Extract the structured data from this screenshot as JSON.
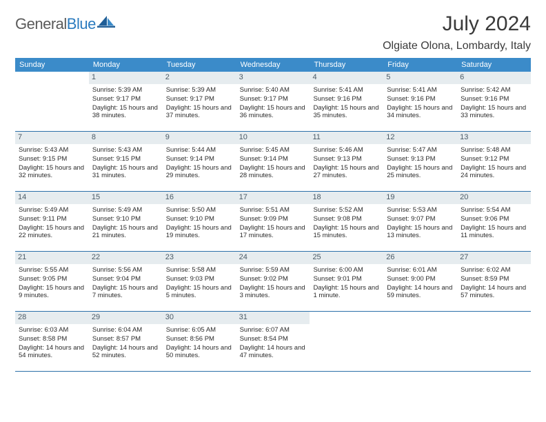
{
  "brand": {
    "name_part1": "General",
    "name_part2": "Blue"
  },
  "title": "July 2024",
  "location": "Olgiate Olona, Lombardy, Italy",
  "colors": {
    "header_bg": "#3b8bc9",
    "daynum_bg": "#e6ecef",
    "border": "#2b6fa8",
    "logo_blue": "#2b7bbf"
  },
  "dow": [
    "Sunday",
    "Monday",
    "Tuesday",
    "Wednesday",
    "Thursday",
    "Friday",
    "Saturday"
  ],
  "weeks": [
    [
      null,
      {
        "n": "1",
        "sr": "5:39 AM",
        "ss": "9:17 PM",
        "dl": "15 hours and 38 minutes."
      },
      {
        "n": "2",
        "sr": "5:39 AM",
        "ss": "9:17 PM",
        "dl": "15 hours and 37 minutes."
      },
      {
        "n": "3",
        "sr": "5:40 AM",
        "ss": "9:17 PM",
        "dl": "15 hours and 36 minutes."
      },
      {
        "n": "4",
        "sr": "5:41 AM",
        "ss": "9:16 PM",
        "dl": "15 hours and 35 minutes."
      },
      {
        "n": "5",
        "sr": "5:41 AM",
        "ss": "9:16 PM",
        "dl": "15 hours and 34 minutes."
      },
      {
        "n": "6",
        "sr": "5:42 AM",
        "ss": "9:16 PM",
        "dl": "15 hours and 33 minutes."
      }
    ],
    [
      {
        "n": "7",
        "sr": "5:43 AM",
        "ss": "9:15 PM",
        "dl": "15 hours and 32 minutes."
      },
      {
        "n": "8",
        "sr": "5:43 AM",
        "ss": "9:15 PM",
        "dl": "15 hours and 31 minutes."
      },
      {
        "n": "9",
        "sr": "5:44 AM",
        "ss": "9:14 PM",
        "dl": "15 hours and 29 minutes."
      },
      {
        "n": "10",
        "sr": "5:45 AM",
        "ss": "9:14 PM",
        "dl": "15 hours and 28 minutes."
      },
      {
        "n": "11",
        "sr": "5:46 AM",
        "ss": "9:13 PM",
        "dl": "15 hours and 27 minutes."
      },
      {
        "n": "12",
        "sr": "5:47 AM",
        "ss": "9:13 PM",
        "dl": "15 hours and 25 minutes."
      },
      {
        "n": "13",
        "sr": "5:48 AM",
        "ss": "9:12 PM",
        "dl": "15 hours and 24 minutes."
      }
    ],
    [
      {
        "n": "14",
        "sr": "5:49 AM",
        "ss": "9:11 PM",
        "dl": "15 hours and 22 minutes."
      },
      {
        "n": "15",
        "sr": "5:49 AM",
        "ss": "9:10 PM",
        "dl": "15 hours and 21 minutes."
      },
      {
        "n": "16",
        "sr": "5:50 AM",
        "ss": "9:10 PM",
        "dl": "15 hours and 19 minutes."
      },
      {
        "n": "17",
        "sr": "5:51 AM",
        "ss": "9:09 PM",
        "dl": "15 hours and 17 minutes."
      },
      {
        "n": "18",
        "sr": "5:52 AM",
        "ss": "9:08 PM",
        "dl": "15 hours and 15 minutes."
      },
      {
        "n": "19",
        "sr": "5:53 AM",
        "ss": "9:07 PM",
        "dl": "15 hours and 13 minutes."
      },
      {
        "n": "20",
        "sr": "5:54 AM",
        "ss": "9:06 PM",
        "dl": "15 hours and 11 minutes."
      }
    ],
    [
      {
        "n": "21",
        "sr": "5:55 AM",
        "ss": "9:05 PM",
        "dl": "15 hours and 9 minutes."
      },
      {
        "n": "22",
        "sr": "5:56 AM",
        "ss": "9:04 PM",
        "dl": "15 hours and 7 minutes."
      },
      {
        "n": "23",
        "sr": "5:58 AM",
        "ss": "9:03 PM",
        "dl": "15 hours and 5 minutes."
      },
      {
        "n": "24",
        "sr": "5:59 AM",
        "ss": "9:02 PM",
        "dl": "15 hours and 3 minutes."
      },
      {
        "n": "25",
        "sr": "6:00 AM",
        "ss": "9:01 PM",
        "dl": "15 hours and 1 minute."
      },
      {
        "n": "26",
        "sr": "6:01 AM",
        "ss": "9:00 PM",
        "dl": "14 hours and 59 minutes."
      },
      {
        "n": "27",
        "sr": "6:02 AM",
        "ss": "8:59 PM",
        "dl": "14 hours and 57 minutes."
      }
    ],
    [
      {
        "n": "28",
        "sr": "6:03 AM",
        "ss": "8:58 PM",
        "dl": "14 hours and 54 minutes."
      },
      {
        "n": "29",
        "sr": "6:04 AM",
        "ss": "8:57 PM",
        "dl": "14 hours and 52 minutes."
      },
      {
        "n": "30",
        "sr": "6:05 AM",
        "ss": "8:56 PM",
        "dl": "14 hours and 50 minutes."
      },
      {
        "n": "31",
        "sr": "6:07 AM",
        "ss": "8:54 PM",
        "dl": "14 hours and 47 minutes."
      },
      null,
      null,
      null
    ]
  ],
  "labels": {
    "sunrise_prefix": "Sunrise: ",
    "sunset_prefix": "Sunset: ",
    "daylight_prefix": "Daylight: "
  }
}
